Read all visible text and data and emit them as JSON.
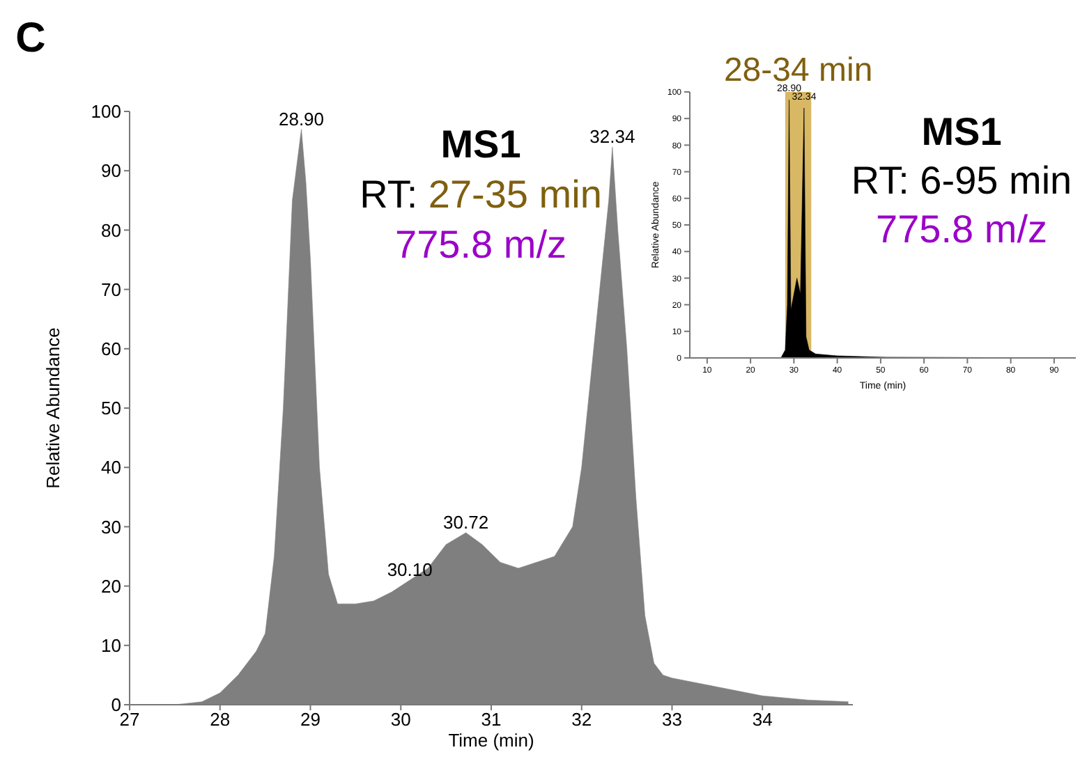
{
  "chart_data": [
    {
      "type": "area",
      "xlabel": "Time (min)",
      "ylabel": "Relative Abundance",
      "color": "#7f7f7f",
      "xlim": [
        27,
        35
      ],
      "xticks": [
        27,
        28,
        29,
        30,
        31,
        32,
        33,
        34
      ],
      "ylim": [
        0,
        100
      ],
      "yticks": [
        0,
        10,
        20,
        30,
        40,
        50,
        60,
        70,
        80,
        90,
        100
      ],
      "x": [
        27,
        27.5,
        27.8,
        28.0,
        28.2,
        28.4,
        28.5,
        28.6,
        28.7,
        28.8,
        28.9,
        28.95,
        29.0,
        29.1,
        29.2,
        29.3,
        29.5,
        29.7,
        29.9,
        30.1,
        30.3,
        30.5,
        30.72,
        30.9,
        31.1,
        31.3,
        31.5,
        31.7,
        31.9,
        32.0,
        32.1,
        32.2,
        32.3,
        32.34,
        32.4,
        32.5,
        32.6,
        32.7,
        32.8,
        32.9,
        33.0,
        33.5,
        34.0,
        34.5,
        34.95
      ],
      "values": [
        0,
        0,
        0.5,
        2,
        5,
        9,
        12,
        25,
        50,
        85,
        97,
        88,
        75,
        40,
        22,
        17,
        17,
        17.5,
        19,
        21,
        23,
        27,
        29,
        27,
        24,
        23,
        24,
        25,
        30,
        40,
        55,
        70,
        85,
        94,
        80,
        60,
        35,
        15,
        7,
        5,
        4.5,
        3,
        1.5,
        0.8,
        0.5
      ],
      "annotations": [
        "C",
        "MS1",
        "RT: 27-35 min",
        "775.8 m/z",
        {
          "text": "28.90",
          "x": 28.9,
          "y": 97
        },
        {
          "text": "30.10",
          "x": 30.1,
          "y": 21
        },
        {
          "text": "30.72",
          "x": 30.72,
          "y": 29
        },
        {
          "text": "32.34",
          "x": 32.34,
          "y": 94
        }
      ]
    },
    {
      "type": "area",
      "xlabel": "Time (min)",
      "ylabel": "Relative Abundance",
      "color": "#000000",
      "xlim": [
        6,
        95
      ],
      "xticks": [
        10,
        20,
        30,
        40,
        50,
        60,
        70,
        80,
        90
      ],
      "ylim": [
        0,
        100
      ],
      "yticks": [
        0,
        10,
        20,
        30,
        40,
        50,
        60,
        70,
        80,
        90,
        100
      ],
      "x": [
        6,
        27,
        28,
        28.5,
        28.9,
        29.3,
        30.7,
        31.5,
        32.34,
        32.8,
        33.5,
        35,
        40,
        50,
        95
      ],
      "values": [
        0,
        0,
        3,
        20,
        97,
        18,
        30,
        24,
        94,
        8,
        3,
        1.5,
        0.8,
        0.3,
        0
      ],
      "bands": [
        {
          "axis": "x",
          "from": 28,
          "to": 34,
          "label": "28-34 min",
          "color": "#d9b865"
        }
      ],
      "annotations": [
        "MS1",
        "RT: 6-95 min",
        "775.8 m/z",
        {
          "text": "28.90",
          "x": 28.9,
          "y": 97
        },
        {
          "text": "32.34",
          "x": 32.34,
          "y": 94
        }
      ]
    }
  ]
}
